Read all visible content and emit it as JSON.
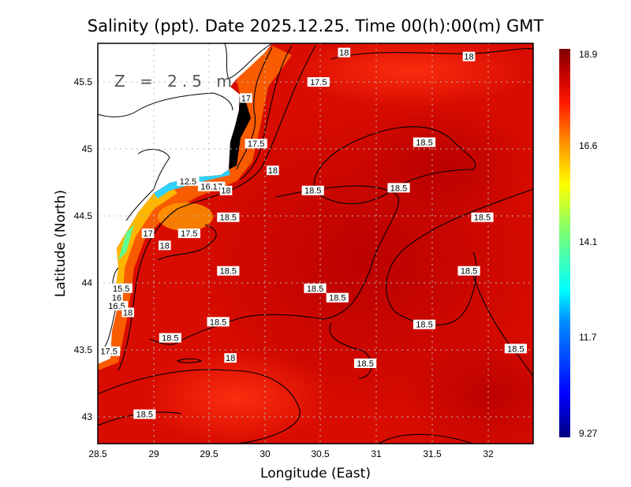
{
  "title": "Salinity (ppt). Date 2025.12.25. Time 00(h):00(m) GMT",
  "depth_label": "Z = 2.5 m",
  "chart_data": {
    "type": "contour-map",
    "variable": "Salinity (ppt)",
    "xlabel": "Longitude (East)",
    "ylabel": "Latitude (North)",
    "xlim": [
      28.5,
      32.4
    ],
    "ylim": [
      42.8,
      45.79
    ],
    "xticks": [
      "28.5",
      "29",
      "29.5",
      "30",
      "30.5",
      "31",
      "31.5",
      "32"
    ],
    "yticks": [
      "45.5",
      "45",
      "44.5",
      "44",
      "43.5",
      "43"
    ],
    "grid": true,
    "colorbar": {
      "ticks": [
        "18.9",
        "16.6",
        "14.1",
        "11.7",
        "9.27"
      ],
      "range": [
        9.27,
        18.9
      ],
      "colors": [
        "#00007f",
        "#0000ff",
        "#00a0ff",
        "#00ffff",
        "#80ff80",
        "#ffff00",
        "#ff9000",
        "#ff2000",
        "#d00000",
        "#7f0000"
      ],
      "placement": "right"
    },
    "land_color": "#ffffff",
    "contour_labels": [
      {
        "text": "18",
        "lon": 30.71,
        "lat": 45.72
      },
      {
        "text": "18",
        "lon": 31.83,
        "lat": 45.69
      },
      {
        "text": "17.5",
        "lon": 30.48,
        "lat": 45.5
      },
      {
        "text": "17",
        "lon": 29.83,
        "lat": 45.38
      },
      {
        "text": "17.5",
        "lon": 29.92,
        "lat": 45.04
      },
      {
        "text": "18.5",
        "lon": 31.43,
        "lat": 45.05
      },
      {
        "text": "18",
        "lon": 30.07,
        "lat": 44.84
      },
      {
        "text": "18.5",
        "lon": 30.43,
        "lat": 44.69
      },
      {
        "text": "18.5",
        "lon": 31.2,
        "lat": 44.71
      },
      {
        "text": "12.5",
        "lon": 29.31,
        "lat": 44.76
      },
      {
        "text": "16.17",
        "lon": 29.52,
        "lat": 44.72
      },
      {
        "text": "18",
        "lon": 29.65,
        "lat": 44.69
      },
      {
        "text": "18.5",
        "lon": 29.67,
        "lat": 44.49
      },
      {
        "text": "18.5",
        "lon": 31.95,
        "lat": 44.49
      },
      {
        "text": "17",
        "lon": 28.95,
        "lat": 44.37
      },
      {
        "text": "17.5",
        "lon": 29.32,
        "lat": 44.37
      },
      {
        "text": "18",
        "lon": 29.1,
        "lat": 44.28
      },
      {
        "text": "18.5",
        "lon": 29.67,
        "lat": 44.09
      },
      {
        "text": "18.5",
        "lon": 31.83,
        "lat": 44.09
      },
      {
        "text": "18.5",
        "lon": 30.45,
        "lat": 43.96
      },
      {
        "text": "18.5",
        "lon": 30.65,
        "lat": 43.89
      },
      {
        "text": "15.5",
        "lon": 28.71,
        "lat": 43.96
      },
      {
        "text": "16",
        "lon": 28.67,
        "lat": 43.89
      },
      {
        "text": "16.5",
        "lon": 28.67,
        "lat": 43.83
      },
      {
        "text": "18",
        "lon": 28.77,
        "lat": 43.78
      },
      {
        "text": "18.5",
        "lon": 29.58,
        "lat": 43.71
      },
      {
        "text": "18.5",
        "lon": 31.43,
        "lat": 43.69
      },
      {
        "text": "18.5",
        "lon": 29.15,
        "lat": 43.59
      },
      {
        "text": "18.5",
        "lon": 32.25,
        "lat": 43.51
      },
      {
        "text": "17.5",
        "lon": 28.6,
        "lat": 43.49
      },
      {
        "text": "18",
        "lon": 29.69,
        "lat": 43.44
      },
      {
        "text": "18.5",
        "lon": 30.9,
        "lat": 43.4
      },
      {
        "text": "18.5",
        "lon": 28.92,
        "lat": 43.02
      }
    ]
  }
}
